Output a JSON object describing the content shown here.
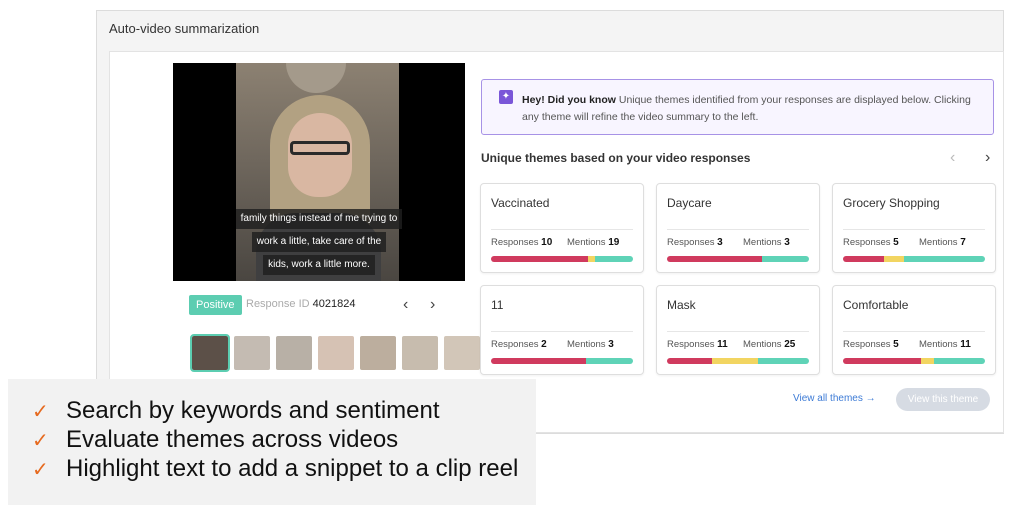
{
  "panel": {
    "title": "Auto-video summarization"
  },
  "video": {
    "captions": [
      "family things instead of me trying to",
      "work a little, take care of the",
      "kids, work a little more."
    ]
  },
  "response": {
    "sentiment": "Positive",
    "id_label": "Response ID",
    "id_value": "4021824",
    "thumbnail_colors": [
      "#5c5048",
      "#c4bbb2",
      "#b8b0a6",
      "#d6c2b4",
      "#bcae9e",
      "#c7bcae",
      "#d2c6b8"
    ]
  },
  "hint": {
    "title": "Hey! Did you know",
    "body": "Unique themes identified from your responses are displayed below. Clicking any theme will refine the video summary to the left."
  },
  "themes": {
    "title": "Unique themes based on your video responses",
    "responses_label": "Responses",
    "mentions_label": "Mentions",
    "segment_colors": {
      "negative": "#d03a5e",
      "neutral": "#f2d561",
      "positive": "#5fd3b7"
    },
    "cards": [
      {
        "name": "Vaccinated",
        "responses": "10",
        "mentions": "19",
        "shares": [
          0.68,
          0.05,
          0.27
        ]
      },
      {
        "name": "Daycare",
        "responses": "3",
        "mentions": "3",
        "shares": [
          0.67,
          0.0,
          0.33
        ]
      },
      {
        "name": "Grocery Shopping",
        "responses": "5",
        "mentions": "7",
        "shares": [
          0.29,
          0.14,
          0.57
        ]
      },
      {
        "name": "11",
        "responses": "2",
        "mentions": "3",
        "shares": [
          0.67,
          0.0,
          0.33
        ]
      },
      {
        "name": "Mask",
        "responses": "11",
        "mentions": "25",
        "shares": [
          0.32,
          0.32,
          0.36
        ]
      },
      {
        "name": "Comfortable",
        "responses": "5",
        "mentions": "11",
        "shares": [
          0.55,
          0.09,
          0.36
        ]
      }
    ],
    "view_all": "View all themes →",
    "view_this": "View this theme"
  },
  "overlay": {
    "bullets": [
      "Search by keywords and sentiment",
      "Evaluate themes across videos",
      "Highlight text to add a snippet to a clip reel"
    ]
  }
}
